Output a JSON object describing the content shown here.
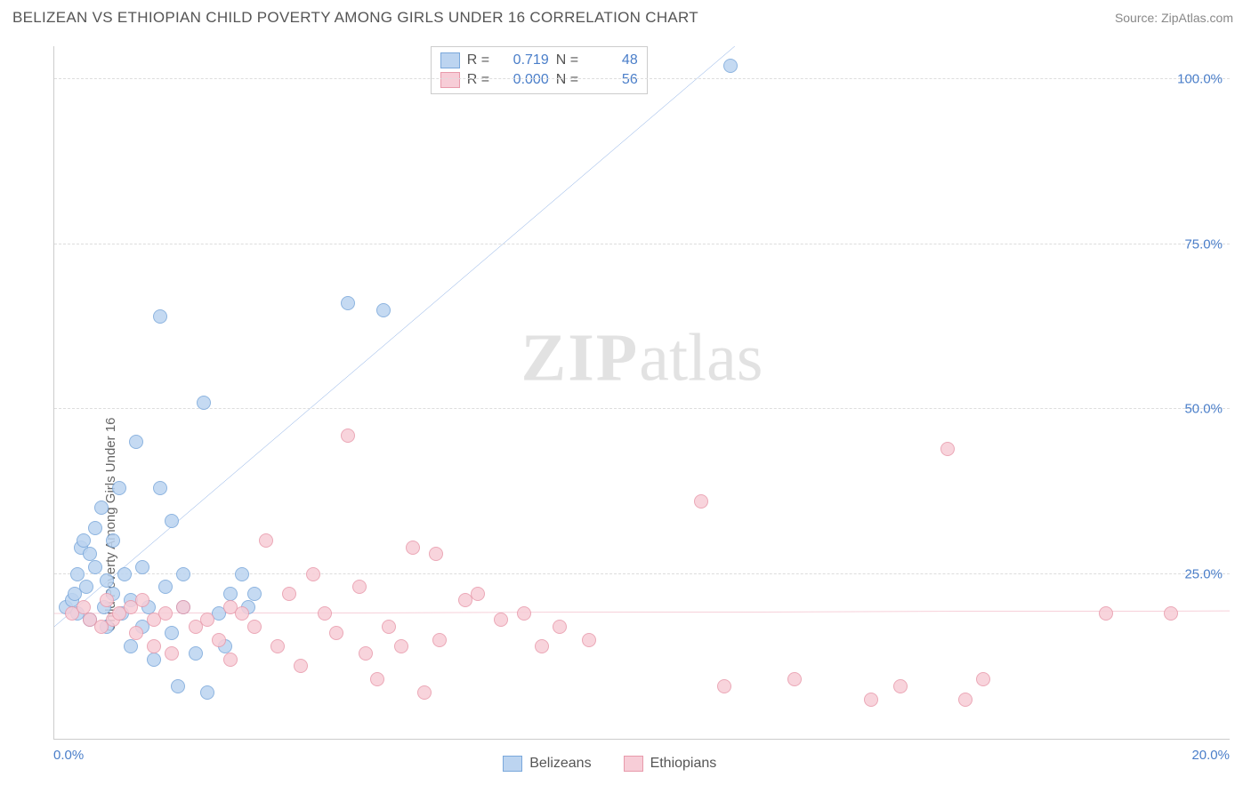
{
  "title": "BELIZEAN VS ETHIOPIAN CHILD POVERTY AMONG GIRLS UNDER 16 CORRELATION CHART",
  "source": "Source: ZipAtlas.com",
  "y_axis_label": "Child Poverty Among Girls Under 16",
  "watermark_bold": "ZIP",
  "watermark_light": "atlas",
  "chart": {
    "type": "scatter",
    "background_color": "#ffffff",
    "grid_color": "#dddddd",
    "axis_color": "#cccccc",
    "tick_label_color": "#4a7ec9",
    "tick_fontsize": 15,
    "xlim": [
      0,
      20
    ],
    "ylim": [
      0,
      105
    ],
    "y_ticks": [
      {
        "v": 25,
        "label": "25.0%"
      },
      {
        "v": 50,
        "label": "50.0%"
      },
      {
        "v": 75,
        "label": "75.0%"
      },
      {
        "v": 100,
        "label": "100.0%"
      }
    ],
    "x_ticks": [
      {
        "v": 0,
        "label": "0.0%"
      },
      {
        "v": 20,
        "label": "20.0%"
      }
    ],
    "series": [
      {
        "name": "Belizeans",
        "fill_color": "#bcd4f0",
        "stroke_color": "#7aa8db",
        "marker_size": 16,
        "marker_opacity": 0.85,
        "trendline": {
          "slope": 7.6,
          "intercept": 17,
          "color": "#2f6fd0",
          "width": 2.2
        },
        "r": "0.719",
        "n": "48",
        "points": [
          [
            0.2,
            20
          ],
          [
            0.3,
            21
          ],
          [
            0.35,
            22
          ],
          [
            0.4,
            25
          ],
          [
            0.4,
            19
          ],
          [
            0.45,
            29
          ],
          [
            0.5,
            30
          ],
          [
            0.55,
            23
          ],
          [
            0.6,
            28
          ],
          [
            0.6,
            18
          ],
          [
            0.7,
            26
          ],
          [
            0.7,
            32
          ],
          [
            0.8,
            35
          ],
          [
            0.85,
            20
          ],
          [
            0.9,
            24
          ],
          [
            0.9,
            17
          ],
          [
            1.0,
            22
          ],
          [
            1.0,
            30
          ],
          [
            1.1,
            38
          ],
          [
            1.15,
            19
          ],
          [
            1.2,
            25
          ],
          [
            1.3,
            21
          ],
          [
            1.3,
            14
          ],
          [
            1.4,
            45
          ],
          [
            1.5,
            26
          ],
          [
            1.5,
            17
          ],
          [
            1.6,
            20
          ],
          [
            1.7,
            12
          ],
          [
            1.8,
            38
          ],
          [
            1.8,
            64
          ],
          [
            1.9,
            23
          ],
          [
            2.0,
            16
          ],
          [
            2.0,
            33
          ],
          [
            2.1,
            8
          ],
          [
            2.2,
            20
          ],
          [
            2.2,
            25
          ],
          [
            2.4,
            13
          ],
          [
            2.55,
            51
          ],
          [
            2.6,
            7
          ],
          [
            2.8,
            19
          ],
          [
            2.9,
            14
          ],
          [
            3.0,
            22
          ],
          [
            3.2,
            25
          ],
          [
            3.3,
            20
          ],
          [
            3.4,
            22
          ],
          [
            5.0,
            66
          ],
          [
            5.6,
            65
          ],
          [
            11.5,
            102
          ]
        ]
      },
      {
        "name": "Ethiopians",
        "fill_color": "#f7cdd7",
        "stroke_color": "#e89aab",
        "marker_size": 16,
        "marker_opacity": 0.85,
        "trendline": {
          "slope": 0.02,
          "intercept": 19,
          "color": "#e46a87",
          "width": 2.2
        },
        "r": "0.000",
        "n": "56",
        "points": [
          [
            0.3,
            19
          ],
          [
            0.5,
            20
          ],
          [
            0.6,
            18
          ],
          [
            0.8,
            17
          ],
          [
            0.9,
            21
          ],
          [
            1.0,
            18
          ],
          [
            1.1,
            19
          ],
          [
            1.3,
            20
          ],
          [
            1.4,
            16
          ],
          [
            1.5,
            21
          ],
          [
            1.7,
            18
          ],
          [
            1.7,
            14
          ],
          [
            1.9,
            19
          ],
          [
            2.0,
            13
          ],
          [
            2.2,
            20
          ],
          [
            2.4,
            17
          ],
          [
            2.6,
            18
          ],
          [
            2.8,
            15
          ],
          [
            3.0,
            20
          ],
          [
            3.0,
            12
          ],
          [
            3.2,
            19
          ],
          [
            3.4,
            17
          ],
          [
            3.6,
            30
          ],
          [
            3.8,
            14
          ],
          [
            4.0,
            22
          ],
          [
            4.2,
            11
          ],
          [
            4.4,
            25
          ],
          [
            4.6,
            19
          ],
          [
            4.8,
            16
          ],
          [
            5.0,
            46
          ],
          [
            5.2,
            23
          ],
          [
            5.3,
            13
          ],
          [
            5.5,
            9
          ],
          [
            5.7,
            17
          ],
          [
            5.9,
            14
          ],
          [
            6.1,
            29
          ],
          [
            6.3,
            7
          ],
          [
            6.5,
            28
          ],
          [
            6.55,
            15
          ],
          [
            7.0,
            21
          ],
          [
            7.2,
            22
          ],
          [
            7.6,
            18
          ],
          [
            8.0,
            19
          ],
          [
            8.3,
            14
          ],
          [
            8.6,
            17
          ],
          [
            9.1,
            15
          ],
          [
            11.0,
            36
          ],
          [
            11.4,
            8
          ],
          [
            12.6,
            9
          ],
          [
            13.9,
            6
          ],
          [
            14.4,
            8
          ],
          [
            15.2,
            44
          ],
          [
            15.5,
            6
          ],
          [
            15.8,
            9
          ],
          [
            17.9,
            19
          ],
          [
            19.0,
            19
          ]
        ]
      }
    ]
  },
  "stat_box": {
    "r_label": "R  =",
    "n_label": "N  ="
  },
  "legend_labels": [
    "Belizeans",
    "Ethiopians"
  ]
}
